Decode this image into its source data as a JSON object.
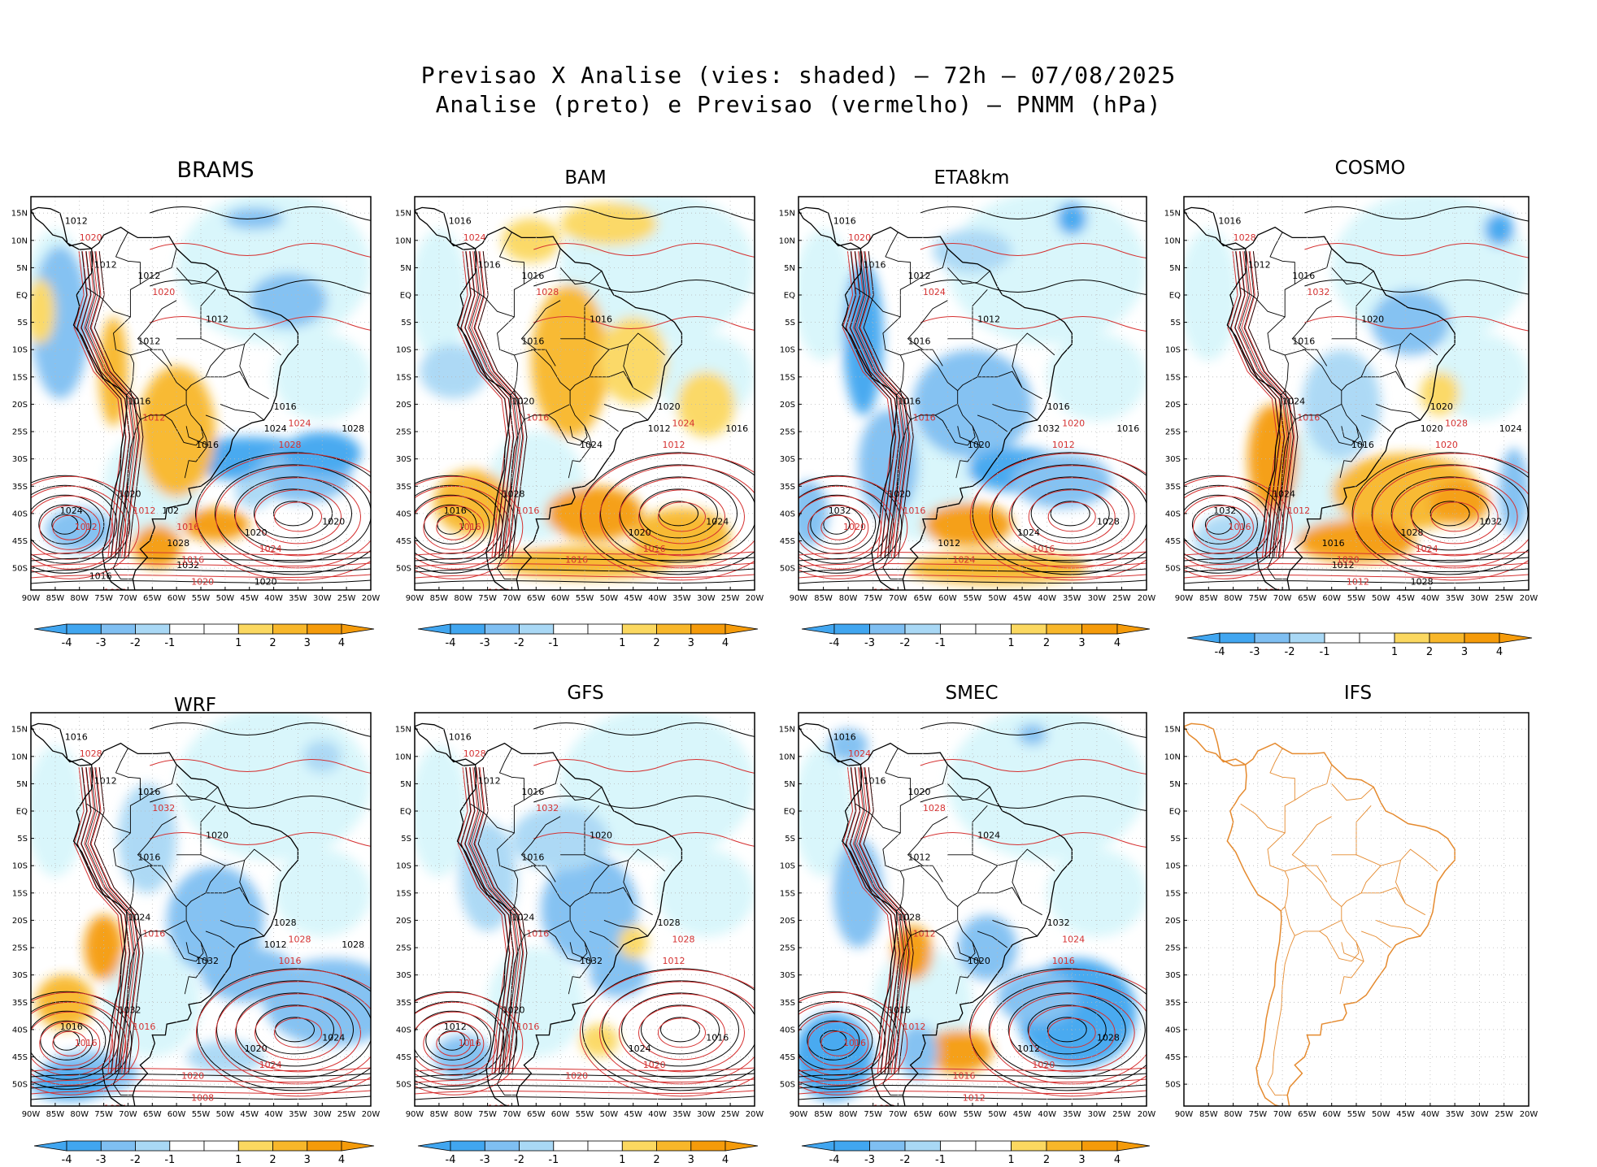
{
  "title": {
    "line1": "Previsao X Analise (vies: shaded) – 72h – 07/08/2025",
    "line2": "Analise (preto) e Previsao (vermelho) – PNMM (hPa)"
  },
  "panels": [
    {
      "name": "BRAMS",
      "has_data": true,
      "black_labels": [
        "1012",
        "1012",
        "1012",
        "1012",
        "1012",
        "1016",
        "1016",
        "1016",
        "1020",
        "1020",
        "1020",
        "1024",
        "1024",
        "1028",
        "1028",
        "1032",
        "1020",
        "1016",
        "102"
      ],
      "red_labels": [
        "1012",
        "1012",
        "1012",
        "1016",
        "1016",
        "1020",
        "1020",
        "1024",
        "1024",
        "1028",
        "1020",
        "1016"
      ]
    },
    {
      "name": "BAM",
      "has_data": true,
      "black_labels": [
        "1016",
        "1016",
        "1016",
        "1016",
        "1016",
        "1020",
        "1020",
        "1024",
        "1028",
        "1020",
        "1024",
        "1016",
        "1012",
        "1016"
      ],
      "red_labels": [
        "1016",
        "1016",
        "1016",
        "1016",
        "1020",
        "1024",
        "1028",
        "1024",
        "1016",
        "1012"
      ]
    },
    {
      "name": "ETA8km",
      "has_data": true,
      "black_labels": [
        "1016",
        "1016",
        "1016",
        "1012",
        "1012",
        "1016",
        "1016",
        "1020",
        "1020",
        "1024",
        "1028",
        "1032",
        "1032",
        "1016",
        "1012"
      ],
      "red_labels": [
        "1016",
        "1016",
        "1020",
        "1024",
        "1028",
        "1020",
        "1024",
        "1020",
        "1016",
        "1012"
      ]
    },
    {
      "name": "COSMO",
      "has_data": true,
      "black_labels": [
        "1016",
        "1016",
        "1012",
        "1016",
        "1020",
        "1024",
        "1020",
        "1016",
        "1024",
        "1028",
        "1032",
        "1032",
        "1020",
        "1024",
        "1016",
        "1012",
        "1028"
      ],
      "red_labels": [
        "1016",
        "1012",
        "1016",
        "1020",
        "1024",
        "1028",
        "1032",
        "1028",
        "1024",
        "1020",
        "1012"
      ]
    },
    {
      "name": "WRF",
      "has_data": true,
      "black_labels": [
        "1016",
        "1016",
        "1012",
        "1016",
        "1020",
        "1024",
        "1028",
        "1032",
        "1032",
        "1020",
        "1024",
        "1016",
        "1012",
        "1028"
      ],
      "red_labels": [
        "1016",
        "1016",
        "1016",
        "1020",
        "1024",
        "1028",
        "1032",
        "1028",
        "1024",
        "1016",
        "1008"
      ]
    },
    {
      "name": "GFS",
      "has_data": true,
      "black_labels": [
        "1016",
        "1016",
        "1012",
        "1016",
        "1020",
        "1024",
        "1028",
        "1032",
        "1020",
        "1024",
        "1016",
        "1012"
      ],
      "red_labels": [
        "1016",
        "1016",
        "1016",
        "1020",
        "1024",
        "1028",
        "1032",
        "1028",
        "1020",
        "1012"
      ]
    },
    {
      "name": "SMEC",
      "has_data": true,
      "black_labels": [
        "1016",
        "1012",
        "1016",
        "1020",
        "1024",
        "1028",
        "1032",
        "1020",
        "1016",
        "1012",
        "1028"
      ],
      "red_labels": [
        "1012",
        "1012",
        "1016",
        "1016",
        "1020",
        "1024",
        "1028",
        "1024",
        "1020",
        "1016",
        "1012"
      ]
    },
    {
      "name": "IFS",
      "has_data": false,
      "black_labels": [],
      "red_labels": []
    }
  ],
  "axes": {
    "y_ticks": [
      "15N",
      "10N",
      "5N",
      "EQ",
      "5S",
      "10S",
      "15S",
      "20S",
      "25S",
      "30S",
      "35S",
      "40S",
      "45S",
      "50S"
    ],
    "x_ticks": [
      "90W",
      "85W",
      "80W",
      "75W",
      "70W",
      "65W",
      "60W",
      "55W",
      "50W",
      "45W",
      "40W",
      "35W",
      "30W",
      "25W",
      "20W"
    ]
  },
  "colorbar": {
    "labels": [
      "-4",
      "-3",
      "-2",
      "-1",
      "1",
      "2",
      "3",
      "4"
    ],
    "colors": [
      "#41a6f0",
      "#7fbff2",
      "#a9d8f5",
      "#d7f6fb",
      "#ffffff",
      "#fff3a8",
      "#fbd860",
      "#f8b72a",
      "#f59b0a"
    ]
  },
  "colors": {
    "analysis": "#000000",
    "forecast": "#d53030",
    "coast_ifs": "#e58a2e",
    "grid": "#b8b8b8"
  }
}
